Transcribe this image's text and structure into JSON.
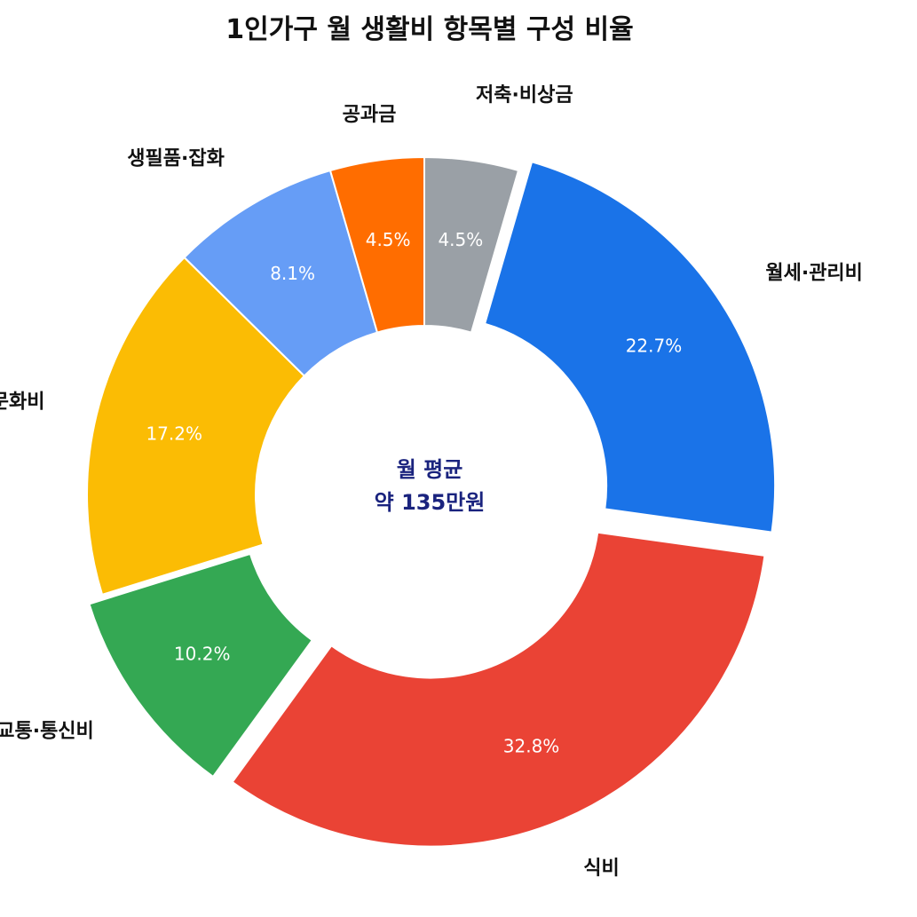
{
  "chart_data": {
    "type": "pie",
    "style": "donut",
    "title": "1인가구 월 생활비 항목별 구성 비율",
    "center_text": [
      "월 평균",
      "약 135만원"
    ],
    "center_text_color": "#1a237e",
    "legend": "none",
    "categories": [
      "저축·비상금",
      "월세·관리비",
      "식비",
      "교통·통신비",
      "여가·문화비",
      "생필품·잡화",
      "공과금"
    ],
    "values": [
      4.5,
      22.7,
      32.8,
      10.2,
      17.2,
      8.1,
      4.5
    ],
    "value_labels": [
      "4.5%",
      "22.7%",
      "32.8%",
      "10.2%",
      "17.2%",
      "8.1%",
      "4.5%"
    ],
    "colors": [
      "#9aa0a6",
      "#1a73e8",
      "#ea4335",
      "#34a853",
      "#fbbc04",
      "#669df6",
      "#ff6d00"
    ],
    "exploded": [
      false,
      true,
      true,
      true,
      false,
      false,
      false
    ]
  }
}
